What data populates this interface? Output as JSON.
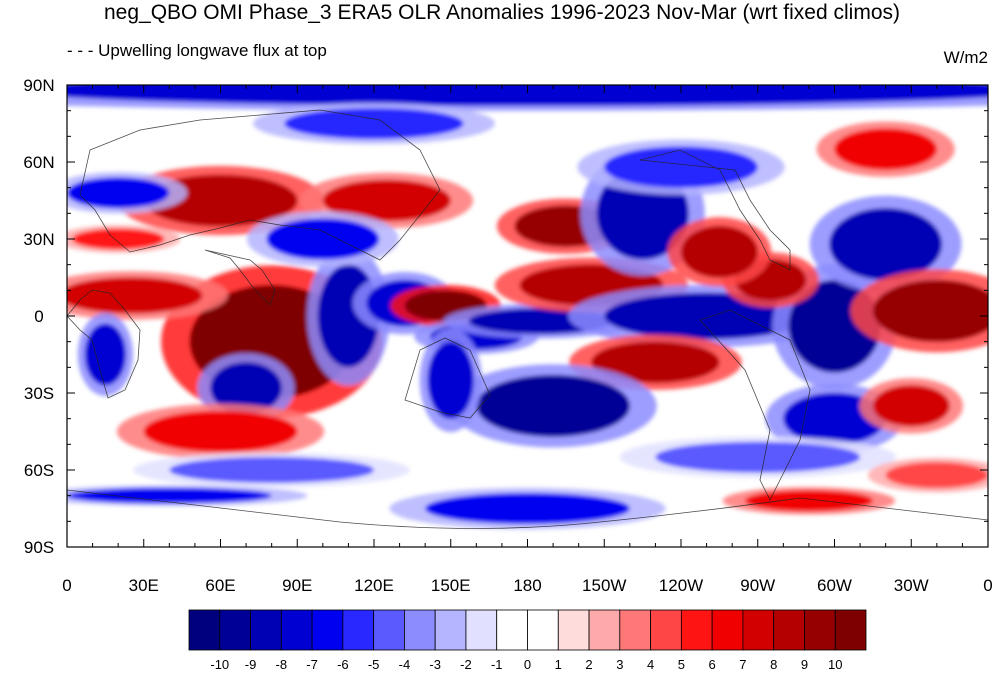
{
  "chart_data": {
    "type": "heatmap",
    "title": "neg_QBO OMI Phase_3 ERA5 OLR Anomalies 1996-2023 Nov-Mar (wrt fixed climos)",
    "left_subtitle": "- - - Upwelling longwave flux at top",
    "right_subtitle": "W/m2",
    "x_ticks": [
      "0",
      "30E",
      "60E",
      "90E",
      "120E",
      "150E",
      "180",
      "150W",
      "120W",
      "90W",
      "60W",
      "30W",
      "0"
    ],
    "y_ticks": [
      "90N",
      "60N",
      "30N",
      "0",
      "30S",
      "60S",
      "90S"
    ],
    "xlim": [
      0,
      360
    ],
    "ylim": [
      -90,
      90
    ],
    "colorbar": {
      "labels": [
        "-10",
        "-9",
        "-8",
        "-7",
        "-6",
        "-5",
        "-4",
        "-3",
        "-2",
        "-1",
        "0",
        "1",
        "2",
        "3",
        "4",
        "5",
        "6",
        "7",
        "8",
        "9",
        "10"
      ],
      "colors": [
        "#00007f",
        "#000096",
        "#0000b4",
        "#0000d2",
        "#0000f0",
        "#2828ff",
        "#5a5aff",
        "#8c8cff",
        "#b4b4ff",
        "#e1e1ff",
        "#ffffff",
        "#ffffff",
        "#ffdcdc",
        "#ffaaaa",
        "#ff7878",
        "#ff4646",
        "#ff1414",
        "#f00000",
        "#d20000",
        "#b40000",
        "#960000",
        "#7f0000"
      ]
    },
    "anomaly_regions": [
      {
        "lon": 80,
        "lat": -10,
        "rx": 32,
        "ry": 22,
        "value": 10
      },
      {
        "lon": 70,
        "lat": -28,
        "rx": 14,
        "ry": 10,
        "value": -9
      },
      {
        "lon": 60,
        "lat": -45,
        "rx": 30,
        "ry": 8,
        "value": 6
      },
      {
        "lon": 25,
        "lat": 8,
        "rx": 28,
        "ry": 7,
        "value": 7
      },
      {
        "lon": 15,
        "lat": -15,
        "rx": 8,
        "ry": 12,
        "value": -8
      },
      {
        "lon": 110,
        "lat": 0,
        "rx": 12,
        "ry": 20,
        "value": -9
      },
      {
        "lon": 132,
        "lat": 5,
        "rx": 15,
        "ry": 9,
        "value": -8
      },
      {
        "lon": 148,
        "lat": 4,
        "rx": 16,
        "ry": 6,
        "value": 10
      },
      {
        "lon": 160,
        "lat": -8,
        "rx": 18,
        "ry": 5,
        "value": -8
      },
      {
        "lon": 185,
        "lat": -2,
        "rx": 28,
        "ry": 5,
        "value": -9
      },
      {
        "lon": 205,
        "lat": 12,
        "rx": 28,
        "ry": 8,
        "value": 8
      },
      {
        "lon": 250,
        "lat": 0,
        "rx": 40,
        "ry": 9,
        "value": -9
      },
      {
        "lon": 300,
        "lat": -4,
        "rx": 18,
        "ry": 18,
        "value": -10
      },
      {
        "lon": 320,
        "lat": 28,
        "rx": 22,
        "ry": 14,
        "value": -9
      },
      {
        "lon": 340,
        "lat": 2,
        "rx": 25,
        "ry": 12,
        "value": 9
      },
      {
        "lon": 275,
        "lat": 14,
        "rx": 14,
        "ry": 8,
        "value": 8
      },
      {
        "lon": 230,
        "lat": -18,
        "rx": 25,
        "ry": 8,
        "value": 8
      },
      {
        "lon": 190,
        "lat": -35,
        "rx": 30,
        "ry": 12,
        "value": -10
      },
      {
        "lon": 150,
        "lat": -25,
        "rx": 9,
        "ry": 15,
        "value": -8
      },
      {
        "lon": 195,
        "lat": 35,
        "rx": 20,
        "ry": 8,
        "value": 9
      },
      {
        "lon": 225,
        "lat": 40,
        "rx": 18,
        "ry": 18,
        "value": -9
      },
      {
        "lon": 255,
        "lat": 25,
        "rx": 15,
        "ry": 10,
        "value": 8
      },
      {
        "lon": 300,
        "lat": -40,
        "rx": 20,
        "ry": 10,
        "value": -8
      },
      {
        "lon": 330,
        "lat": -35,
        "rx": 15,
        "ry": 8,
        "value": 7
      },
      {
        "lon": 60,
        "lat": 45,
        "rx": 30,
        "ry": 10,
        "value": 8
      },
      {
        "lon": 125,
        "lat": 45,
        "rx": 25,
        "ry": 8,
        "value": 7
      },
      {
        "lon": 100,
        "lat": 30,
        "rx": 22,
        "ry": 8,
        "value": -7
      },
      {
        "lon": 20,
        "lat": 48,
        "rx": 20,
        "ry": 6,
        "value": -7
      },
      {
        "lon": 20,
        "lat": 30,
        "rx": 18,
        "ry": 4,
        "value": 5
      },
      {
        "lon": 180,
        "lat": 88,
        "rx": 200,
        "ry": 6,
        "value": -8
      },
      {
        "lon": 240,
        "lat": 58,
        "rx": 30,
        "ry": 8,
        "value": -6
      },
      {
        "lon": 320,
        "lat": 65,
        "rx": 20,
        "ry": 8,
        "value": 6
      },
      {
        "lon": 120,
        "lat": 75,
        "rx": 35,
        "ry": 6,
        "value": -6
      },
      {
        "lon": 180,
        "lat": -75,
        "rx": 40,
        "ry": 6,
        "value": -7
      },
      {
        "lon": 290,
        "lat": -72,
        "rx": 25,
        "ry": 4,
        "value": 6
      },
      {
        "lon": 40,
        "lat": -70,
        "rx": 40,
        "ry": 3,
        "value": -7
      },
      {
        "lon": 80,
        "lat": -60,
        "rx": 40,
        "ry": 5,
        "value": -5
      },
      {
        "lon": 270,
        "lat": -55,
        "rx": 40,
        "ry": 6,
        "value": -5
      },
      {
        "lon": 340,
        "lat": -62,
        "rx": 20,
        "ry": 5,
        "value": 4
      }
    ]
  }
}
